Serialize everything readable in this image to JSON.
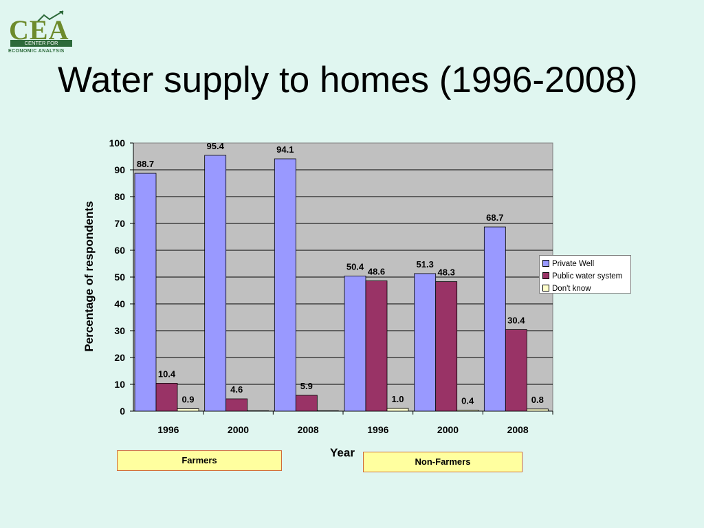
{
  "logo": {
    "word": "CEA",
    "line1": "CENTER FOR",
    "line2": "ECONOMIC ANALYSIS"
  },
  "title": "Water supply to homes (1996-2008)",
  "colors": {
    "private_well": "#9999ff",
    "public_water": "#993366",
    "dont_know": "#ffffcc",
    "plot_bg": "#c0c0c0",
    "group_box": "#ffff9f"
  },
  "groups": {
    "farmers": "Farmers",
    "non_farmers": "Non-Farmers"
  },
  "chart_data": {
    "type": "bar",
    "title": "",
    "xlabel": "Year",
    "ylabel": "Percentage of respondents",
    "ylim": [
      0,
      100
    ],
    "yticks": [
      "0",
      "10",
      "20",
      "30",
      "40",
      "50",
      "60",
      "70",
      "80",
      "90",
      "100"
    ],
    "categories": [
      "1996",
      "2000",
      "2008",
      "1996",
      "2000",
      "2008"
    ],
    "series": [
      {
        "name": "Private Well",
        "values": [
          88.7,
          95.4,
          94.1,
          50.4,
          51.3,
          68.7
        ],
        "labels": [
          "88.7",
          "95.4",
          "94.1",
          "50.4",
          "51.3",
          "68.7"
        ]
      },
      {
        "name": "Public water system",
        "values": [
          10.4,
          4.6,
          5.9,
          48.6,
          48.3,
          30.4
        ],
        "labels": [
          "10.4",
          "4.6",
          "5.9",
          "48.6",
          "48.3",
          "30.4"
        ]
      },
      {
        "name": "Don't know",
        "values": [
          0.9,
          0,
          0,
          1.0,
          0.4,
          0.8
        ],
        "labels": [
          "0.9",
          "",
          "",
          "1.0",
          "0.4",
          "0.8"
        ]
      }
    ],
    "grid": true,
    "legend_position": "right"
  }
}
